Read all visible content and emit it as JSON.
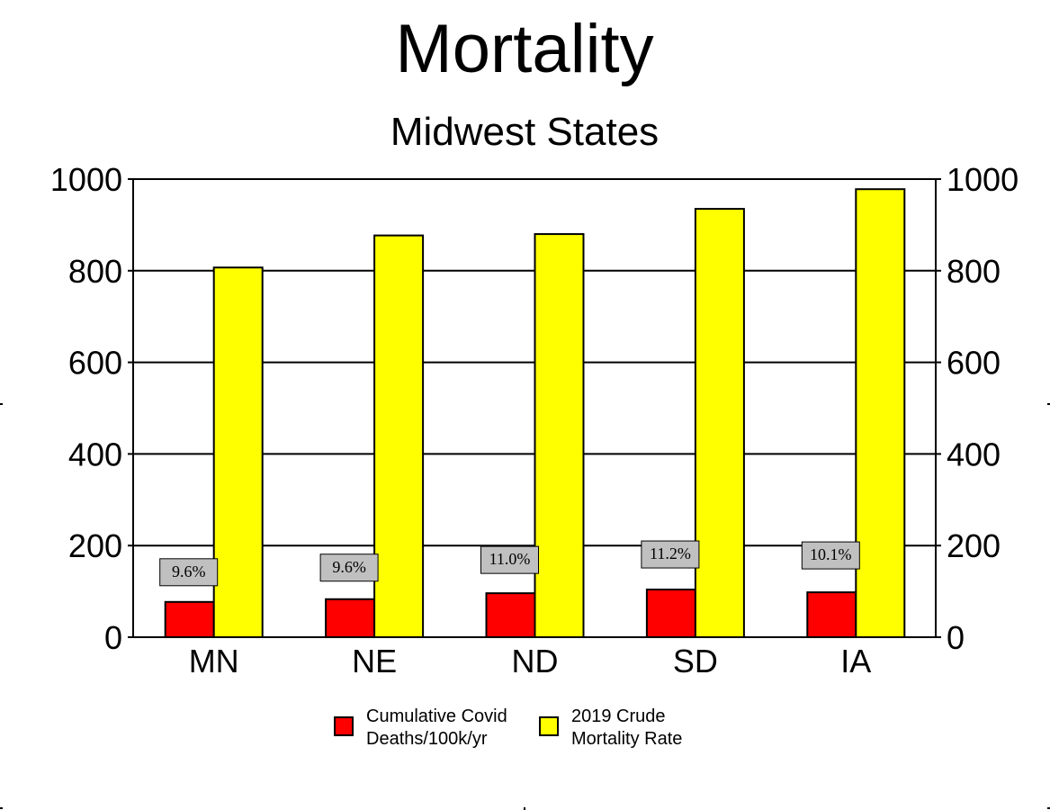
{
  "chart_data": {
    "type": "bar",
    "title": "Mortality",
    "subtitle": "Midwest States",
    "categories": [
      "MN",
      "NE",
      "ND",
      "SD",
      "IA"
    ],
    "series": [
      {
        "name": "Cumulative Covid Deaths/100k/yr",
        "legend_lines": [
          "Cumulative Covid",
          "Deaths/100k/yr"
        ],
        "color": "#ff0000",
        "values": [
          77,
          83,
          96,
          104,
          98
        ]
      },
      {
        "name": "2019 Crude Mortality Rate",
        "legend_lines": [
          "2019 Crude",
          "Mortality Rate"
        ],
        "color": "#ffff00",
        "values": [
          807,
          877,
          880,
          935,
          978
        ]
      }
    ],
    "annotations": [
      "9.6%",
      "9.6%",
      "11.0%",
      "11.2%",
      "10.1%"
    ],
    "annotation_color": "#c0c0c0",
    "ylim": [
      0,
      1000
    ],
    "yticks": [
      "0",
      "200",
      "400",
      "600",
      "800",
      "1000"
    ],
    "y_axis_both_sides": true,
    "grid": true,
    "legend_position": "bottom"
  }
}
